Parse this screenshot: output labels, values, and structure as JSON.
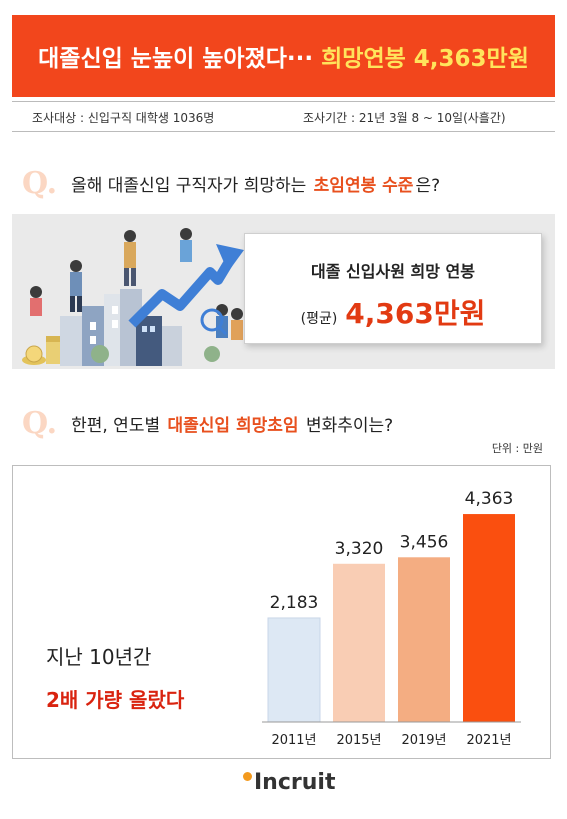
{
  "header": {
    "title_white": "대졸신입 눈높이 높아졌다···",
    "title_yellow": "희망연봉 4,363만원"
  },
  "survey": {
    "target": "조사대상 : 신입구직 대학생 1036명",
    "period": "조사기간 : 21년 3월 8 ~ 10일(사흘간)"
  },
  "q1": {
    "mark": "Q.",
    "text_before": "올해 대졸신입 구직자가 희망하는",
    "highlight": "초임연봉 수준",
    "text_after": "은?"
  },
  "card": {
    "title": "대졸 신입사원 희망 연봉",
    "prefix": "(평균)",
    "value": "4,363만원"
  },
  "q2": {
    "mark": "Q.",
    "text_before": "한편, 연도별",
    "highlight": "대졸신입 희망초임",
    "text_after": "변화추이는?"
  },
  "chart_data": {
    "type": "bar",
    "categories": [
      "2011년",
      "2015년",
      "2019년",
      "2021년"
    ],
    "values": [
      2183,
      3320,
      3456,
      4363
    ],
    "value_labels": [
      "2,183",
      "3,320",
      "3,456",
      "4,363"
    ],
    "unit_label": "단위 : 만원",
    "ylim": [
      0,
      4700
    ],
    "colors": [
      "#dde8f4",
      "#f9cdb4",
      "#f4ad82",
      "#fa4f0f"
    ]
  },
  "callout": {
    "line1": "지난 10년간",
    "line2": "2배 가량 올랐다"
  },
  "logo": {
    "text": "Incruit"
  }
}
